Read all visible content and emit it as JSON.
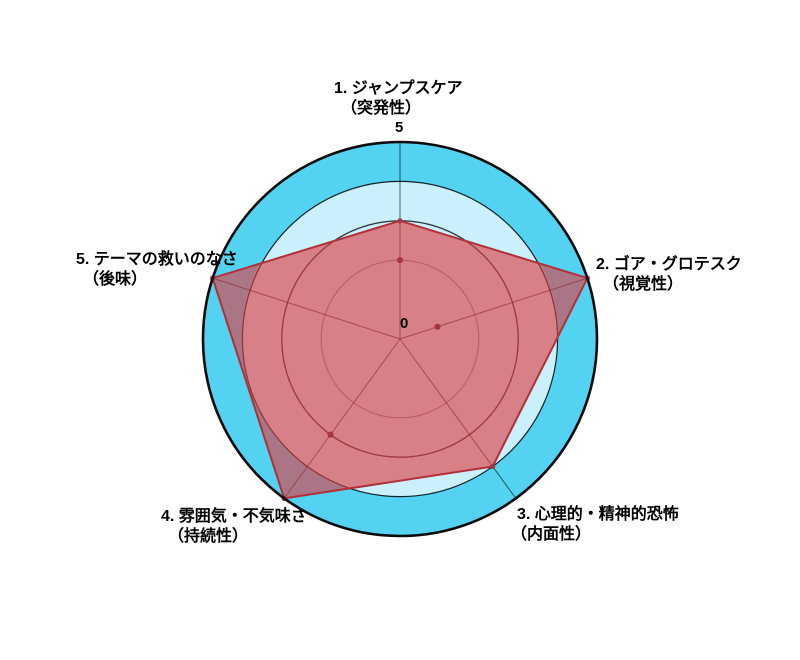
{
  "chart_data": {
    "type": "radar",
    "categories": [
      {
        "line1": "1. ジャンプスケア",
        "line2": "（突発性）"
      },
      {
        "line1": "2. ゴア・グロテスク",
        "line2": "（視覚性）"
      },
      {
        "line1": "3. 心理的・精神的恐怖",
        "line2": "（内面性）"
      },
      {
        "line1": "4. 雰囲気・不気味さ",
        "line2": "（持続性）"
      },
      {
        "line1": "5. テーマの救いのなさ",
        "line2": "（後味）"
      }
    ],
    "series": [
      {
        "name": "horror-element-scores",
        "values": [
          3,
          5,
          4,
          5,
          5
        ]
      }
    ],
    "extra_markers": [
      {
        "axis": 0,
        "value": 2
      },
      {
        "axis": 1,
        "value": 1
      },
      {
        "axis": 3,
        "value": 3
      }
    ],
    "ticks": {
      "max": "5",
      "min": "0"
    },
    "ylim": [
      0,
      5
    ],
    "gridline_values": [
      5,
      4,
      3,
      2
    ],
    "layout": {
      "grid": "circular",
      "start_axis": "top",
      "direction": "clockwise",
      "legend": "none"
    },
    "colors": {
      "outer_disc": "#53D3F1",
      "inner_disc": "#C9F0FB",
      "series_fill": "rgba(225,60,65,0.62)",
      "series_stroke": "#B23038",
      "marker": "#A63540",
      "outer_ring": "#0B0B0B",
      "background": "#FFFFFF"
    }
  }
}
